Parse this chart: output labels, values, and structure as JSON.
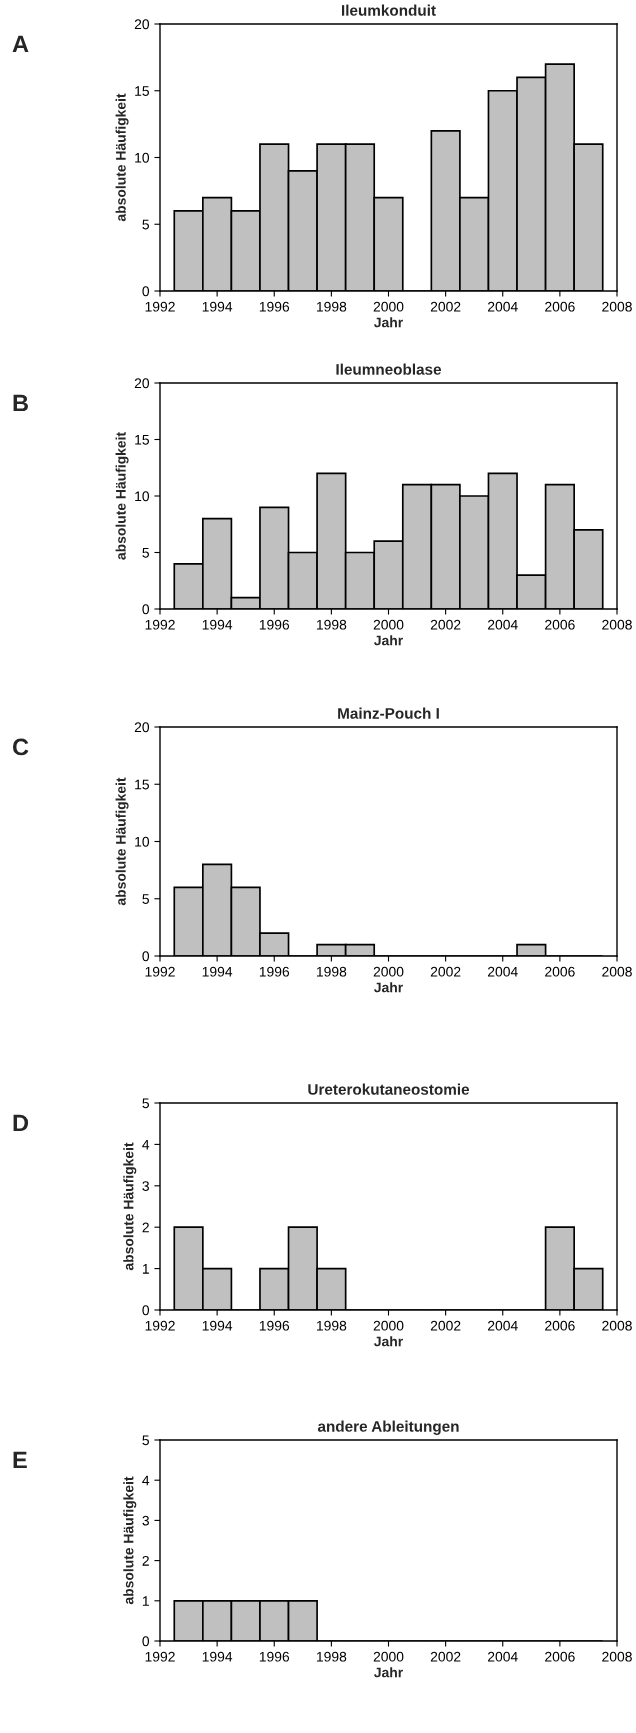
{
  "chart_data": [
    {
      "type": "bar",
      "title": "Ileumkonduit",
      "xlabel": "Jahr",
      "ylabel": "absolute Häufigkeit",
      "annotations": [
        "A"
      ],
      "x": [
        1993,
        1994,
        1995,
        1996,
        1997,
        1998,
        1999,
        2000,
        2001,
        2002,
        2003,
        2004,
        2005,
        2006,
        2007
      ],
      "values": [
        6,
        7,
        6,
        11,
        9,
        11,
        11,
        7,
        0,
        12,
        7,
        15,
        16,
        17,
        11
      ],
      "color": "#c0c0c0",
      "xlim": [
        1992,
        2008
      ],
      "xticks": [
        1992,
        1994,
        1996,
        1998,
        2000,
        2002,
        2004,
        2006,
        2008
      ],
      "ylim": [
        0,
        20
      ],
      "yticks": [
        0,
        5,
        10,
        15,
        20
      ],
      "grid": false,
      "legend": false
    },
    {
      "type": "bar",
      "title": "Ileumneoblase",
      "xlabel": "Jahr",
      "ylabel": "absolute Häufigkeit",
      "annotations": [
        "B"
      ],
      "x": [
        1993,
        1994,
        1995,
        1996,
        1997,
        1998,
        1999,
        2000,
        2001,
        2002,
        2003,
        2004,
        2005,
        2006,
        2007
      ],
      "values": [
        4,
        8,
        1,
        9,
        5,
        12,
        5,
        6,
        11,
        11,
        10,
        12,
        3,
        11,
        7
      ],
      "color": "#c0c0c0",
      "xlim": [
        1992,
        2008
      ],
      "xticks": [
        1992,
        1994,
        1996,
        1998,
        2000,
        2002,
        2004,
        2006,
        2008
      ],
      "ylim": [
        0,
        20
      ],
      "yticks": [
        0,
        5,
        10,
        15,
        20
      ],
      "grid": false,
      "legend": false
    },
    {
      "type": "bar",
      "title": "Mainz-Pouch I",
      "xlabel": "Jahr",
      "ylabel": "absolute Häufigkeit",
      "annotations": [
        "C"
      ],
      "x": [
        1993,
        1994,
        1995,
        1996,
        1997,
        1998,
        1999,
        2000,
        2001,
        2002,
        2003,
        2004,
        2005,
        2006,
        2007
      ],
      "values": [
        6,
        8,
        6,
        2,
        0,
        1,
        1,
        0,
        0,
        0,
        0,
        0,
        1,
        0,
        0
      ],
      "color": "#c0c0c0",
      "xlim": [
        1992,
        2008
      ],
      "xticks": [
        1992,
        1994,
        1996,
        1998,
        2000,
        2002,
        2004,
        2006,
        2008
      ],
      "ylim": [
        0,
        20
      ],
      "yticks": [
        0,
        5,
        10,
        15,
        20
      ],
      "grid": false,
      "legend": false
    },
    {
      "type": "bar",
      "title": "Ureterokutaneostomie",
      "xlabel": "Jahr",
      "ylabel": "absolute Häufigkeit",
      "annotations": [
        "D"
      ],
      "x": [
        1993,
        1994,
        1995,
        1996,
        1997,
        1998,
        1999,
        2000,
        2001,
        2002,
        2003,
        2004,
        2005,
        2006,
        2007
      ],
      "values": [
        2,
        1,
        0,
        1,
        2,
        1,
        0,
        0,
        0,
        0,
        0,
        0,
        0,
        2,
        1
      ],
      "color": "#c0c0c0",
      "xlim": [
        1992,
        2008
      ],
      "xticks": [
        1992,
        1994,
        1996,
        1998,
        2000,
        2002,
        2004,
        2006,
        2008
      ],
      "ylim": [
        0,
        5
      ],
      "yticks": [
        0,
        1,
        2,
        3,
        4,
        5
      ],
      "grid": false,
      "legend": false
    },
    {
      "type": "bar",
      "title": "andere Ableitungen",
      "xlabel": "Jahr",
      "ylabel": "absolute Häufigkeit",
      "annotations": [
        "E"
      ],
      "x": [
        1993,
        1994,
        1995,
        1996,
        1997,
        1998,
        1999,
        2000,
        2001,
        2002,
        2003,
        2004,
        2005,
        2006,
        2007
      ],
      "values": [
        1,
        1,
        1,
        1,
        1,
        0,
        0,
        0,
        0,
        0,
        0,
        0,
        0,
        0,
        0
      ],
      "color": "#c0c0c0",
      "xlim": [
        1992,
        2008
      ],
      "xticks": [
        1992,
        1994,
        1996,
        1998,
        2000,
        2002,
        2004,
        2006,
        2008
      ],
      "ylim": [
        0,
        5
      ],
      "yticks": [
        0,
        1,
        2,
        3,
        4,
        5
      ],
      "grid": false,
      "legend": false
    }
  ]
}
